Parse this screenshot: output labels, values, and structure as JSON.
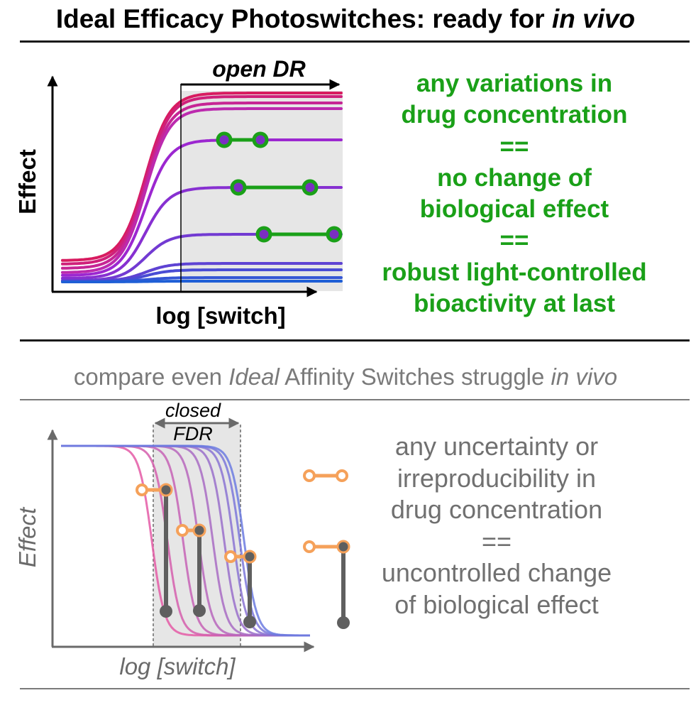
{
  "title": {
    "main": "Ideal Efficacy Photoswitches: ready for ",
    "emphasis": "in vivo"
  },
  "top_panel": {
    "xlabel": "log [switch]",
    "ylabel": "Effect",
    "range_label": "open DR",
    "statement_lines": [
      "any variations in",
      "drug concentration",
      "==",
      "no change of",
      "biological effect",
      "==",
      "robust light-controlled",
      "bioactivity at last"
    ],
    "statement_color": "#1aa018"
  },
  "comparison": {
    "part1": "compare even ",
    "part2": "Ideal",
    "part3": " Affinity Switches struggle ",
    "part4": "in vivo"
  },
  "bottom_panel": {
    "xlabel": "log [switch]",
    "ylabel": "Effect",
    "range_label_line1": "closed",
    "range_label_line2": "FDR",
    "statement_lines": [
      "any uncertainty or",
      "irreproducibility in",
      "drug concentration",
      "==",
      "uncontrolled change",
      "of biological effect"
    ],
    "statement_color": "#707070",
    "marker_color": "#f5a15a"
  }
}
